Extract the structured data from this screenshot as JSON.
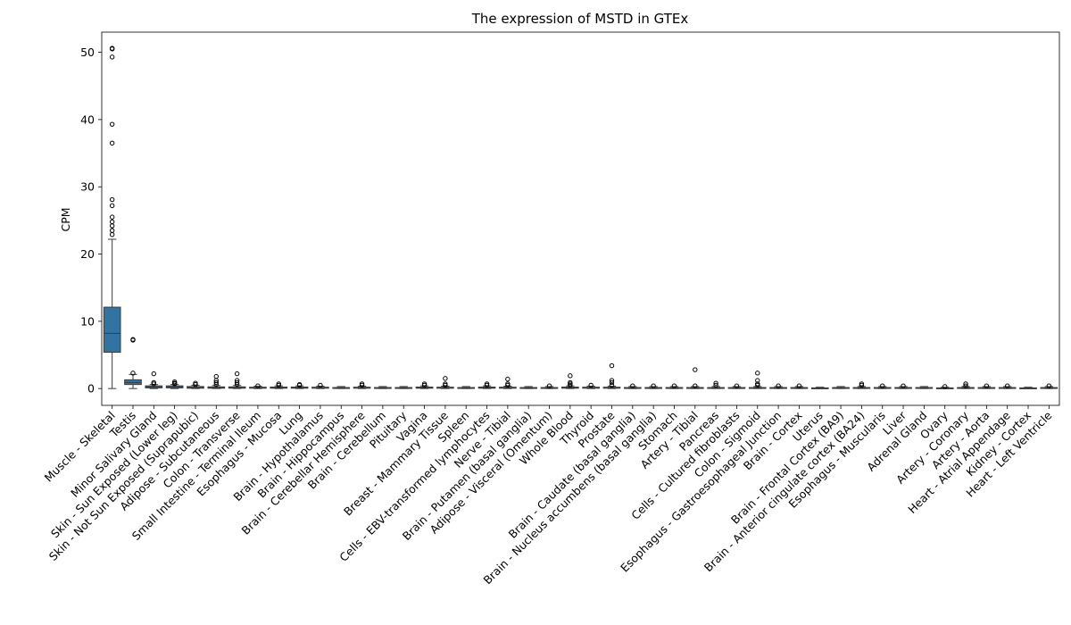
{
  "chart_data": {
    "type": "box",
    "title": "The expression of MSTD in GTEx",
    "xlabel": "",
    "ylabel": "CPM",
    "ylim": [
      -2.5,
      53
    ],
    "yticks": [
      0,
      10,
      20,
      30,
      40,
      50
    ],
    "ytick_labels": [
      "0",
      "10",
      "20",
      "30",
      "40",
      "50"
    ],
    "grid": false,
    "box_color": "#3274a1",
    "categories": [
      "Muscle - Skeletal",
      "Testis",
      "Minor Salivary Gland",
      "Skin - Sun Exposed (Lower leg)",
      "Skin - Not Sun Exposed (Suprapubic)",
      "Adipose - Subcutaneous",
      "Colon - Transverse",
      "Small Intestine - Terminal Ileum",
      "Esophagus - Mucosa",
      "Lung",
      "Brain - Hypothalamus",
      "Brain - Hippocampus",
      "Brain - Cerebellar Hemisphere",
      "Brain - Cerebellum",
      "Pituitary",
      "Vagina",
      "Breast - Mammary Tissue",
      "Spleen",
      "Cells - EBV-transformed lymphocytes",
      "Nerve - Tibial",
      "Brain - Putamen (basal ganglia)",
      "Adipose - Visceral (Omentum)",
      "Whole Blood",
      "Thyroid",
      "Prostate",
      "Brain - Caudate (basal ganglia)",
      "Brain - Nucleus accumbens (basal ganglia)",
      "Stomach",
      "Artery - Tibial",
      "Pancreas",
      "Cells - Cultured fibroblasts",
      "Colon - Sigmoid",
      "Esophagus - Gastroesophageal Junction",
      "Brain - Cortex",
      "Uterus",
      "Brain - Frontal Cortex (BA9)",
      "Brain - Anterior cingulate cortex (BA24)",
      "Esophagus - Muscularis",
      "Liver",
      "Adrenal Gland",
      "Ovary",
      "Artery - Coronary",
      "Artery - Aorta",
      "Heart - Atrial Appendage",
      "Kidney - Cortex",
      "Heart - Left Ventricle"
    ],
    "boxes": [
      {
        "q1": 5.4,
        "median": 8.2,
        "q3": 12.1,
        "whislo": 0.0,
        "whishi": 22.2,
        "fliers": [
          22.9,
          23.5,
          24.2,
          24.8,
          25.5,
          27.2,
          28.1,
          36.5,
          39.3,
          49.3,
          50.5,
          50.6
        ]
      },
      {
        "q1": 0.6,
        "median": 0.9,
        "q3": 1.3,
        "whislo": 0.0,
        "whishi": 2.1,
        "fliers": [
          2.3,
          7.2,
          7.3
        ]
      },
      {
        "q1": 0.1,
        "median": 0.25,
        "q3": 0.4,
        "whislo": 0.0,
        "whishi": 0.6,
        "fliers": [
          0.7,
          0.9,
          2.2
        ]
      },
      {
        "q1": 0.1,
        "median": 0.25,
        "q3": 0.4,
        "whislo": 0.0,
        "whishi": 0.6,
        "fliers": [
          0.7,
          0.8,
          1.0
        ]
      },
      {
        "q1": 0.05,
        "median": 0.15,
        "q3": 0.3,
        "whislo": 0.0,
        "whishi": 0.5,
        "fliers": [
          0.6,
          0.8
        ]
      },
      {
        "q1": 0.05,
        "median": 0.15,
        "q3": 0.25,
        "whislo": 0.0,
        "whishi": 0.45,
        "fliers": [
          0.6,
          0.9,
          1.2,
          1.8
        ]
      },
      {
        "q1": 0.05,
        "median": 0.15,
        "q3": 0.25,
        "whislo": 0.0,
        "whishi": 0.45,
        "fliers": [
          0.6,
          0.9,
          1.2,
          2.2
        ]
      },
      {
        "q1": 0.05,
        "median": 0.1,
        "q3": 0.2,
        "whislo": 0.0,
        "whishi": 0.35,
        "fliers": [
          0.4
        ]
      },
      {
        "q1": 0.05,
        "median": 0.12,
        "q3": 0.22,
        "whislo": 0.0,
        "whishi": 0.4,
        "fliers": [
          0.5,
          0.7
        ]
      },
      {
        "q1": 0.05,
        "median": 0.12,
        "q3": 0.22,
        "whislo": 0.0,
        "whishi": 0.4,
        "fliers": [
          0.5,
          0.6
        ]
      },
      {
        "q1": 0.05,
        "median": 0.1,
        "q3": 0.2,
        "whislo": 0.0,
        "whishi": 0.35,
        "fliers": [
          0.5
        ]
      },
      {
        "q1": 0.03,
        "median": 0.08,
        "q3": 0.15,
        "whislo": 0.0,
        "whishi": 0.3,
        "fliers": []
      },
      {
        "q1": 0.05,
        "median": 0.1,
        "q3": 0.2,
        "whislo": 0.0,
        "whishi": 0.35,
        "fliers": [
          0.5,
          0.7
        ]
      },
      {
        "q1": 0.03,
        "median": 0.08,
        "q3": 0.15,
        "whislo": 0.0,
        "whishi": 0.3,
        "fliers": []
      },
      {
        "q1": 0.03,
        "median": 0.08,
        "q3": 0.15,
        "whislo": 0.0,
        "whishi": 0.3,
        "fliers": []
      },
      {
        "q1": 0.05,
        "median": 0.12,
        "q3": 0.22,
        "whislo": 0.0,
        "whishi": 0.4,
        "fliers": [
          0.5,
          0.7
        ]
      },
      {
        "q1": 0.05,
        "median": 0.1,
        "q3": 0.2,
        "whislo": 0.0,
        "whishi": 0.35,
        "fliers": [
          0.5,
          0.7,
          1.5
        ]
      },
      {
        "q1": 0.03,
        "median": 0.08,
        "q3": 0.15,
        "whislo": 0.0,
        "whishi": 0.3,
        "fliers": []
      },
      {
        "q1": 0.05,
        "median": 0.12,
        "q3": 0.22,
        "whislo": 0.0,
        "whishi": 0.4,
        "fliers": [
          0.5,
          0.7
        ]
      },
      {
        "q1": 0.05,
        "median": 0.1,
        "q3": 0.2,
        "whislo": 0.0,
        "whishi": 0.35,
        "fliers": [
          0.5,
          0.7,
          1.4
        ]
      },
      {
        "q1": 0.03,
        "median": 0.08,
        "q3": 0.15,
        "whislo": 0.0,
        "whishi": 0.3,
        "fliers": []
      },
      {
        "q1": 0.03,
        "median": 0.08,
        "q3": 0.15,
        "whislo": 0.0,
        "whishi": 0.3,
        "fliers": [
          0.4
        ]
      },
      {
        "q1": 0.05,
        "median": 0.12,
        "q3": 0.22,
        "whislo": 0.0,
        "whishi": 0.4,
        "fliers": [
          0.5,
          0.7,
          0.9,
          1.9
        ]
      },
      {
        "q1": 0.05,
        "median": 0.1,
        "q3": 0.2,
        "whislo": 0.0,
        "whishi": 0.35,
        "fliers": [
          0.5
        ]
      },
      {
        "q1": 0.05,
        "median": 0.1,
        "q3": 0.2,
        "whislo": 0.0,
        "whishi": 0.35,
        "fliers": [
          0.5,
          0.9,
          1.2,
          3.4
        ]
      },
      {
        "q1": 0.03,
        "median": 0.08,
        "q3": 0.15,
        "whislo": 0.0,
        "whishi": 0.3,
        "fliers": [
          0.4
        ]
      },
      {
        "q1": 0.03,
        "median": 0.08,
        "q3": 0.15,
        "whislo": 0.0,
        "whishi": 0.3,
        "fliers": [
          0.4
        ]
      },
      {
        "q1": 0.03,
        "median": 0.08,
        "q3": 0.15,
        "whislo": 0.0,
        "whishi": 0.3,
        "fliers": [
          0.4
        ]
      },
      {
        "q1": 0.03,
        "median": 0.08,
        "q3": 0.15,
        "whislo": 0.0,
        "whishi": 0.3,
        "fliers": [
          0.4,
          2.8
        ]
      },
      {
        "q1": 0.03,
        "median": 0.08,
        "q3": 0.15,
        "whislo": 0.0,
        "whishi": 0.3,
        "fliers": [
          0.5,
          0.8
        ]
      },
      {
        "q1": 0.03,
        "median": 0.08,
        "q3": 0.15,
        "whislo": 0.0,
        "whishi": 0.3,
        "fliers": [
          0.4
        ]
      },
      {
        "q1": 0.03,
        "median": 0.08,
        "q3": 0.15,
        "whislo": 0.0,
        "whishi": 0.3,
        "fliers": [
          0.5,
          0.7,
          1.2,
          2.3
        ]
      },
      {
        "q1": 0.03,
        "median": 0.08,
        "q3": 0.15,
        "whislo": 0.0,
        "whishi": 0.3,
        "fliers": [
          0.4
        ]
      },
      {
        "q1": 0.03,
        "median": 0.08,
        "q3": 0.15,
        "whislo": 0.0,
        "whishi": 0.3,
        "fliers": [
          0.4
        ]
      },
      {
        "q1": 0.02,
        "median": 0.05,
        "q3": 0.1,
        "whislo": 0.0,
        "whishi": 0.2,
        "fliers": []
      },
      {
        "q1": 0.03,
        "median": 0.08,
        "q3": 0.15,
        "whislo": 0.0,
        "whishi": 0.3,
        "fliers": []
      },
      {
        "q1": 0.03,
        "median": 0.08,
        "q3": 0.15,
        "whislo": 0.0,
        "whishi": 0.3,
        "fliers": [
          0.5,
          0.7
        ]
      },
      {
        "q1": 0.03,
        "median": 0.08,
        "q3": 0.15,
        "whislo": 0.0,
        "whishi": 0.3,
        "fliers": [
          0.4
        ]
      },
      {
        "q1": 0.03,
        "median": 0.08,
        "q3": 0.15,
        "whislo": 0.0,
        "whishi": 0.3,
        "fliers": [
          0.4
        ]
      },
      {
        "q1": 0.03,
        "median": 0.08,
        "q3": 0.15,
        "whislo": 0.0,
        "whishi": 0.3,
        "fliers": []
      },
      {
        "q1": 0.02,
        "median": 0.05,
        "q3": 0.1,
        "whislo": 0.0,
        "whishi": 0.2,
        "fliers": [
          0.3
        ]
      },
      {
        "q1": 0.03,
        "median": 0.08,
        "q3": 0.15,
        "whislo": 0.0,
        "whishi": 0.3,
        "fliers": [
          0.4,
          0.7
        ]
      },
      {
        "q1": 0.03,
        "median": 0.08,
        "q3": 0.15,
        "whislo": 0.0,
        "whishi": 0.3,
        "fliers": [
          0.4
        ]
      },
      {
        "q1": 0.03,
        "median": 0.08,
        "q3": 0.15,
        "whislo": 0.0,
        "whishi": 0.3,
        "fliers": [
          0.4
        ]
      },
      {
        "q1": 0.02,
        "median": 0.05,
        "q3": 0.1,
        "whislo": 0.0,
        "whishi": 0.2,
        "fliers": []
      },
      {
        "q1": 0.03,
        "median": 0.08,
        "q3": 0.15,
        "whislo": 0.0,
        "whishi": 0.3,
        "fliers": [
          0.4
        ]
      }
    ]
  }
}
